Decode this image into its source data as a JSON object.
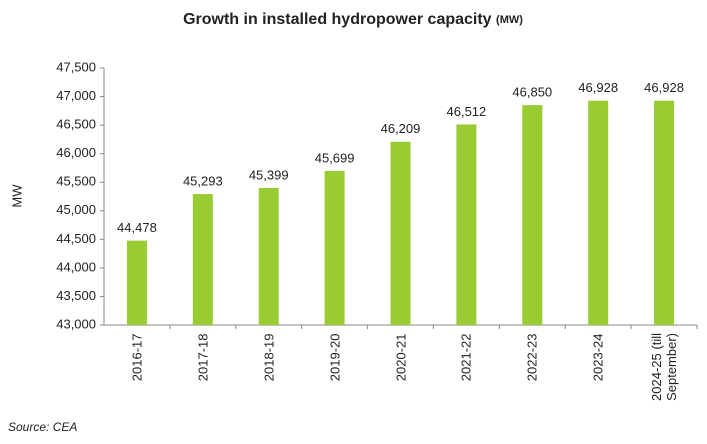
{
  "chart_data": {
    "type": "bar",
    "title": "Growth in installed hydropower capacity",
    "title_unit": "(MW)",
    "y_label": "MW",
    "source": "Source: CEA",
    "categories": [
      "2016-17",
      "2017-18",
      "2018-19",
      "2019-20",
      "2020-21",
      "2021-22",
      "2022-23",
      "2023-24",
      "2024-25 (till September)"
    ],
    "values": [
      44478,
      45293,
      45399,
      45699,
      46209,
      46512,
      46850,
      46928,
      46928
    ],
    "value_labels": [
      "44,478",
      "45,293",
      "45,399",
      "45,699",
      "46,209",
      "46,512",
      "46,850",
      "46,928",
      "46,928"
    ],
    "color": "#99cc33",
    "ylim": [
      43000,
      47500
    ],
    "yticks": [
      {
        "value": 43000,
        "label": "43,000"
      },
      {
        "value": 43500,
        "label": "43,500"
      },
      {
        "value": 44000,
        "label": "44,000"
      },
      {
        "value": 44500,
        "label": "44,500"
      },
      {
        "value": 45000,
        "label": "45,000"
      },
      {
        "value": 45500,
        "label": "45,500"
      },
      {
        "value": 46000,
        "label": "46,000"
      },
      {
        "value": 46500,
        "label": "46,500"
      },
      {
        "value": 47000,
        "label": "47,000"
      },
      {
        "value": 47500,
        "label": "47,500"
      }
    ],
    "grid": false
  }
}
